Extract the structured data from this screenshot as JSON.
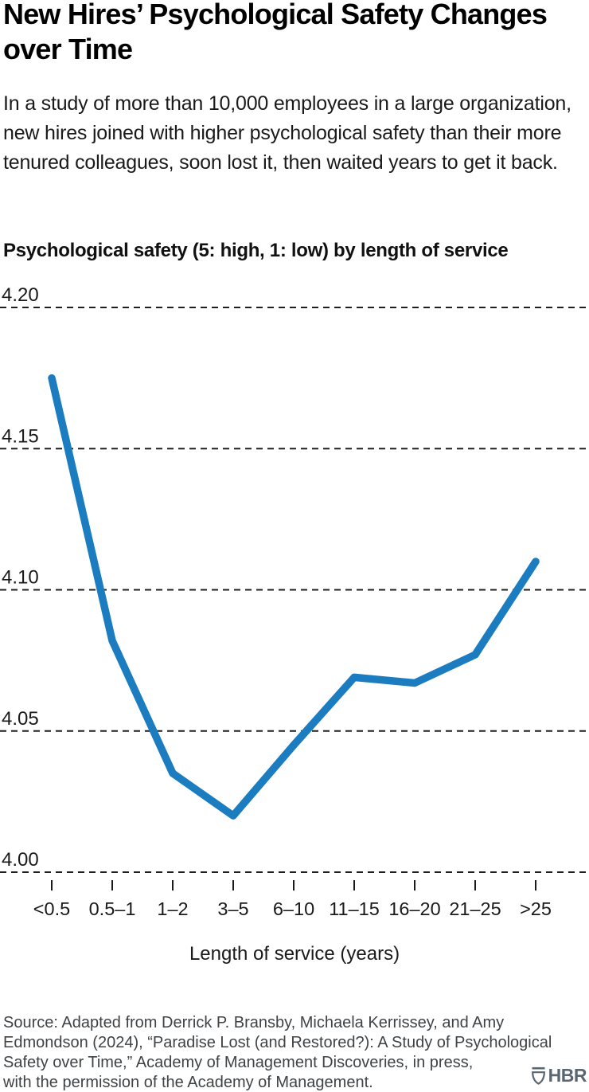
{
  "title": "New Hires’ Psychological Safety Changes over Time",
  "intro": "In a study of more than 10,000 employees in a large organization, new hires joined with higher psychological safety than their more tenured colleagues, soon lost it, then waited years to get it back.",
  "chart_data": {
    "type": "line",
    "title": "Psychological safety (5: high, 1: low) by length of service",
    "categories": [
      "<0.5",
      "0.5–1",
      "1–2",
      "3–5",
      "6–10",
      "11–15",
      "16–20",
      "21–25",
      ">25"
    ],
    "values": [
      4.175,
      4.082,
      4.035,
      4.02,
      4.045,
      4.069,
      4.067,
      4.077,
      4.11
    ],
    "xlabel": "Length of service (years)",
    "ylabel": "",
    "yticks": [
      4.2,
      4.15,
      4.1,
      4.05,
      4.0
    ],
    "ylim": [
      3.995,
      4.21
    ],
    "grid": "horizontal-dashed",
    "legend": "none",
    "line_color": "#1b7cc0",
    "grid_color": "#1f1f1f",
    "tick_label_color": "#1a1a1a"
  },
  "source": {
    "lines": [
      "Source: Adapted from Derrick P. Bransby, Michaela Kerrissey, and Amy",
      "Edmondson (2024), “Paradise Lost (and Restored?): A Study of Psychological",
      "Safety over Time,” Academy of Management Discoveries, in press,",
      "with the permission of the Academy of Management."
    ]
  },
  "logo": {
    "text": "HBR",
    "icon": "hbr-shield-icon",
    "color": "#5b6770"
  }
}
